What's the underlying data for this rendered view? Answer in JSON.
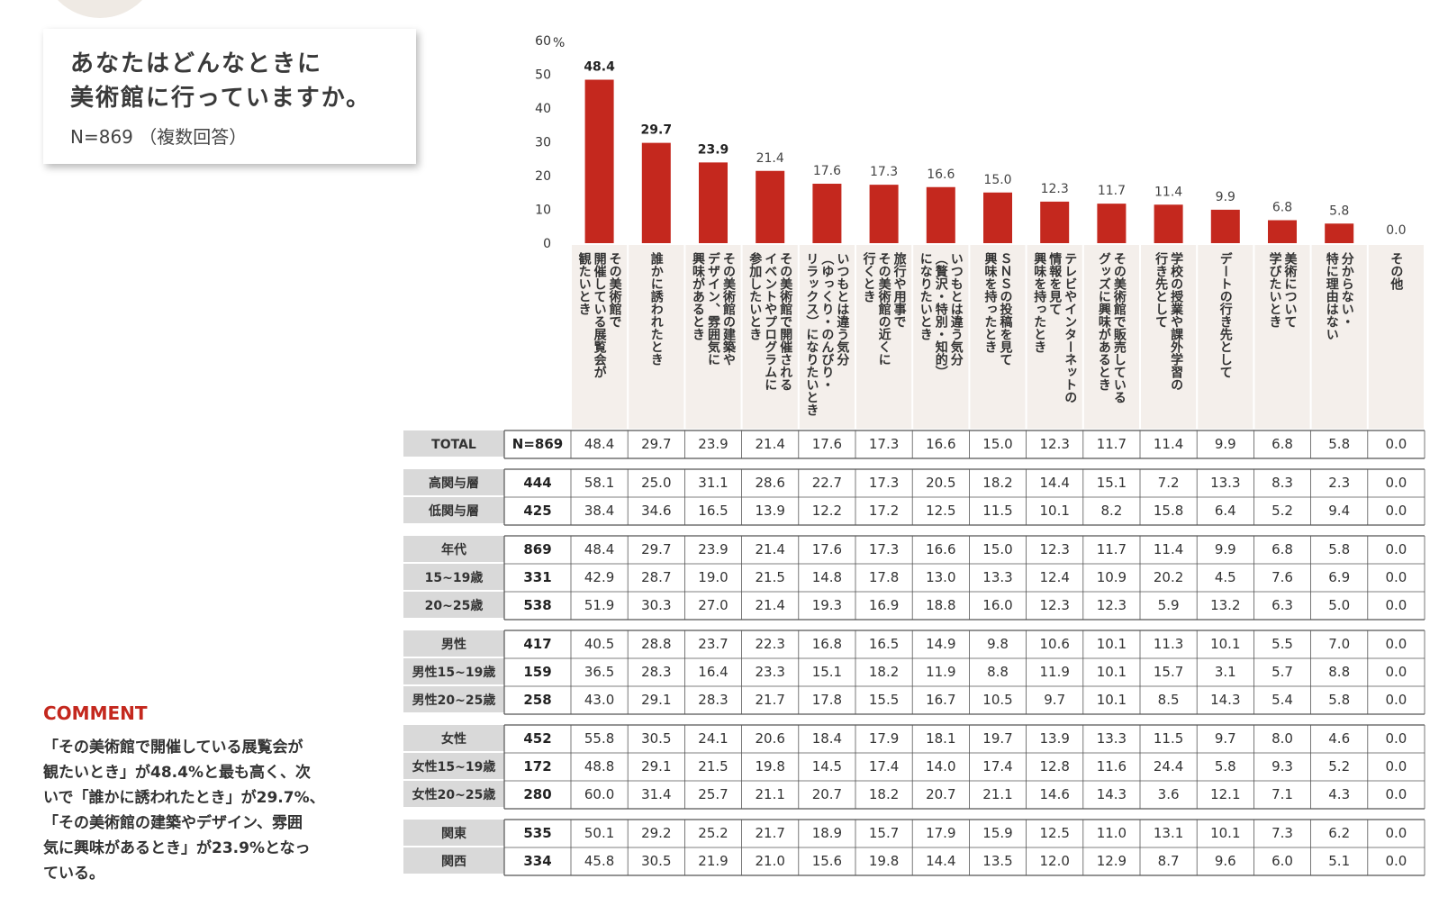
{
  "title": {
    "line1": "あなたはどんなときに",
    "line2": "美術館に行っていますか。",
    "sample": "N=869 （複数回答）"
  },
  "comment": {
    "heading": "COMMENT",
    "lines": [
      "「その美術館で開催している展覧会が",
      "観たいとき」が48.4%と最も高く、次",
      "いで「誰かに誘われたとき」が29.7%、",
      "「その美術館の建築やデザイン、雰囲",
      "気に興味があるとき」が23.9%となっ",
      "ている。"
    ]
  },
  "colors": {
    "bar": "#c4281e",
    "category_bg": "#f4efeb",
    "label_bg": "#d9d9d9",
    "border": "#555555"
  },
  "chart_data": {
    "type": "bar",
    "ylim": [
      0,
      60
    ],
    "yticks": [
      "60",
      "50",
      "40",
      "30",
      "20",
      "10",
      "0"
    ],
    "yunit": "%",
    "grid": false,
    "categories": [
      [
        "その美術館で",
        "開催している展覧会が",
        "観たいとき"
      ],
      [
        "誰かに誘われたとき"
      ],
      [
        "その美術館の建築や",
        "デザイン、雰囲気に",
        "興味があるとき"
      ],
      [
        "その美術館で開催される",
        "イベントやプログラムに",
        "参加したいとき"
      ],
      [
        "いつもとは違う気分",
        "（ゆっくり・のんびり・",
        "リラックス）になりたいとき"
      ],
      [
        "旅行や用事で",
        "その美術館の近くに",
        "行くとき"
      ],
      [
        "いつもとは違う気分",
        "（贅沢・特別・知的）",
        "になりたいとき"
      ],
      [
        "ＳＮＳの投稿を見て",
        "興味を持ったとき"
      ],
      [
        "テレビやインターネットの",
        "情報を見て",
        "興味を持ったとき"
      ],
      [
        "その美術館で販売している",
        "グッズに興味があるとき"
      ],
      [
        "学校の授業や課外学習の",
        "行き先として"
      ],
      [
        "デートの行き先として"
      ],
      [
        "美術について",
        "学びたいとき"
      ],
      [
        "分からない・",
        "特に理由はない"
      ],
      [
        "その他"
      ]
    ],
    "values": [
      48.4,
      29.7,
      23.9,
      21.4,
      17.6,
      17.3,
      16.6,
      15.0,
      12.3,
      11.7,
      11.4,
      9.9,
      6.8,
      5.8,
      0.0
    ],
    "value_labels": [
      "48.4",
      "29.7",
      "23.9",
      "21.4",
      "17.6",
      "17.3",
      "16.6",
      "15.0",
      "12.3",
      "11.7",
      "11.4",
      "9.9",
      "6.8",
      "5.8",
      "0.0"
    ],
    "bold_labels": 3,
    "table": {
      "groups": [
        [
          {
            "label": "TOTAL",
            "n": "N=869",
            "values": [
              "48.4",
              "29.7",
              "23.9",
              "21.4",
              "17.6",
              "17.3",
              "16.6",
              "15.0",
              "12.3",
              "11.7",
              "11.4",
              "9.9",
              "6.8",
              "5.8",
              "0.0"
            ]
          }
        ],
        [
          {
            "label": "高関与層",
            "n": "444",
            "values": [
              "58.1",
              "25.0",
              "31.1",
              "28.6",
              "22.7",
              "17.3",
              "20.5",
              "18.2",
              "14.4",
              "15.1",
              "7.2",
              "13.3",
              "8.3",
              "2.3",
              "0.0"
            ]
          },
          {
            "label": "低関与層",
            "n": "425",
            "values": [
              "38.4",
              "34.6",
              "16.5",
              "13.9",
              "12.2",
              "17.2",
              "12.5",
              "11.5",
              "10.1",
              "8.2",
              "15.8",
              "6.4",
              "5.2",
              "9.4",
              "0.0"
            ]
          }
        ],
        [
          {
            "label": "年代",
            "n": "869",
            "values": [
              "48.4",
              "29.7",
              "23.9",
              "21.4",
              "17.6",
              "17.3",
              "16.6",
              "15.0",
              "12.3",
              "11.7",
              "11.4",
              "9.9",
              "6.8",
              "5.8",
              "0.0"
            ]
          },
          {
            "label": "15~19歳",
            "n": "331",
            "values": [
              "42.9",
              "28.7",
              "19.0",
              "21.5",
              "14.8",
              "17.8",
              "13.0",
              "13.3",
              "12.4",
              "10.9",
              "20.2",
              "4.5",
              "7.6",
              "6.9",
              "0.0"
            ]
          },
          {
            "label": "20~25歳",
            "n": "538",
            "values": [
              "51.9",
              "30.3",
              "27.0",
              "21.4",
              "19.3",
              "16.9",
              "18.8",
              "16.0",
              "12.3",
              "12.3",
              "5.9",
              "13.2",
              "6.3",
              "5.0",
              "0.0"
            ]
          }
        ],
        [
          {
            "label": "男性",
            "n": "417",
            "values": [
              "40.5",
              "28.8",
              "23.7",
              "22.3",
              "16.8",
              "16.5",
              "14.9",
              "9.8",
              "10.6",
              "10.1",
              "11.3",
              "10.1",
              "5.5",
              "7.0",
              "0.0"
            ]
          },
          {
            "label": "男性15~19歳",
            "n": "159",
            "values": [
              "36.5",
              "28.3",
              "16.4",
              "23.3",
              "15.1",
              "18.2",
              "11.9",
              "8.8",
              "11.9",
              "10.1",
              "15.7",
              "3.1",
              "5.7",
              "8.8",
              "0.0"
            ]
          },
          {
            "label": "男性20~25歳",
            "n": "258",
            "values": [
              "43.0",
              "29.1",
              "28.3",
              "21.7",
              "17.8",
              "15.5",
              "16.7",
              "10.5",
              "9.7",
              "10.1",
              "8.5",
              "14.3",
              "5.4",
              "5.8",
              "0.0"
            ]
          }
        ],
        [
          {
            "label": "女性",
            "n": "452",
            "values": [
              "55.8",
              "30.5",
              "24.1",
              "20.6",
              "18.4",
              "17.9",
              "18.1",
              "19.7",
              "13.9",
              "13.3",
              "11.5",
              "9.7",
              "8.0",
              "4.6",
              "0.0"
            ]
          },
          {
            "label": "女性15~19歳",
            "n": "172",
            "values": [
              "48.8",
              "29.1",
              "21.5",
              "19.8",
              "14.5",
              "17.4",
              "14.0",
              "17.4",
              "12.8",
              "11.6",
              "24.4",
              "5.8",
              "9.3",
              "5.2",
              "0.0"
            ]
          },
          {
            "label": "女性20~25歳",
            "n": "280",
            "values": [
              "60.0",
              "31.4",
              "25.7",
              "21.1",
              "20.7",
              "18.2",
              "20.7",
              "21.1",
              "14.6",
              "14.3",
              "3.6",
              "12.1",
              "7.1",
              "4.3",
              "0.0"
            ]
          }
        ],
        [
          {
            "label": "関東",
            "n": "535",
            "values": [
              "50.1",
              "29.2",
              "25.2",
              "21.7",
              "18.9",
              "15.7",
              "17.9",
              "15.9",
              "12.5",
              "11.0",
              "13.1",
              "10.1",
              "7.3",
              "6.2",
              "0.0"
            ]
          },
          {
            "label": "関西",
            "n": "334",
            "values": [
              "45.8",
              "30.5",
              "21.9",
              "21.0",
              "15.6",
              "19.8",
              "14.4",
              "13.5",
              "12.0",
              "12.9",
              "8.7",
              "9.6",
              "6.0",
              "5.1",
              "0.0"
            ]
          }
        ]
      ]
    }
  }
}
